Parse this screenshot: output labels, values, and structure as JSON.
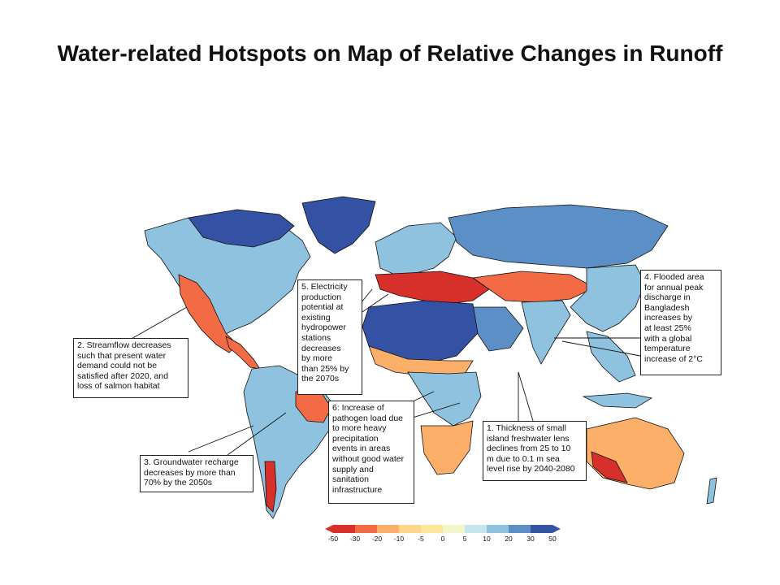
{
  "page": {
    "title": "Water-related Hotspots on Map of Relative Changes in Runoff"
  },
  "map": {
    "subject": "relative changes in runoff",
    "colors": {
      "ocean": "#ffffff",
      "strong_decrease": "#d7302a",
      "decrease": "#f36b45",
      "mild_decrease": "#fcaf68",
      "slight_decrease": "#fee79a",
      "neutral": "#f3f6c9",
      "slight_increase": "#c6e6ee",
      "mild_increase": "#8fc2de",
      "increase": "#5b8fc5",
      "strong_increase": "#3451a3",
      "no_data": "#c8c8c8",
      "coastline": "#111111"
    },
    "colorbar": {
      "ticks": [
        "-50",
        "-30",
        "-20",
        "-10",
        "-5",
        "0",
        "5",
        "10",
        "20",
        "30",
        "50"
      ],
      "colors": [
        "#d7302a",
        "#f36b45",
        "#fcaf68",
        "#fed88a",
        "#fee79a",
        "#f3f6c9",
        "#c6e6ee",
        "#8fc2de",
        "#5b8fc5",
        "#3451a3"
      ]
    },
    "callouts": [
      {
        "id": "2",
        "text": "2. Streamflow decreases\nsuch that present water\ndemand could not be\nsatisfied after 2020, and\nloss of salmon habitat"
      },
      {
        "id": "3",
        "text": "3. Groundwater recharge\ndecreases by more than\n70% by the 2050s"
      },
      {
        "id": "5",
        "text": "5. Electricity\nproduction\npotential at\nexisting\nhydropower\nstations\ndecreases\nby more\nthan 25% by\nthe 2070s"
      },
      {
        "id": "6",
        "text": "6: Increase of\npathogen load due\nto more heavy\nprecipitation\nevents in areas\nwithout good water\nsupply and\nsanitation\ninfrastructure"
      },
      {
        "id": "1",
        "text": "1. Thickness of small\nisland freshwater lens\ndeclines from 25 to 10\nm due to 0.1 m sea\nlevel rise by 2040-2080"
      },
      {
        "id": "4",
        "text": "4. Flooded area\nfor annual peak\ndischarge in\nBangladesh\nincreases by\nat least 25%\nwith a global\ntemperature\nincrease of 2°C"
      }
    ]
  }
}
